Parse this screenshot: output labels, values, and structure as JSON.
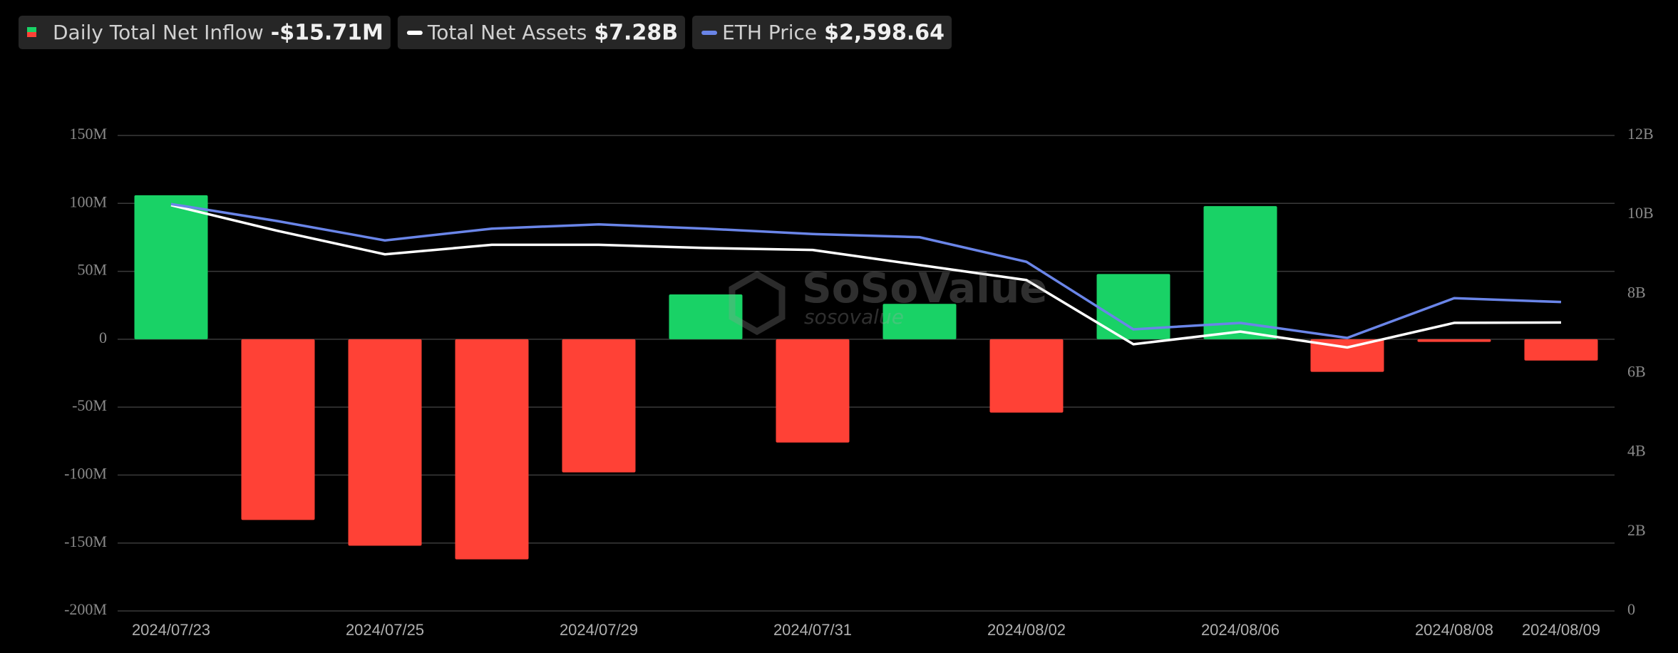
{
  "chart_data": {
    "type": "bar",
    "categories": [
      "2024/07/23",
      null,
      "2024/07/25",
      null,
      "2024/07/29",
      null,
      "2024/07/31",
      null,
      "2024/08/02",
      null,
      "2024/08/06",
      null,
      "2024/08/08",
      "2024/08/09"
    ],
    "series": [
      {
        "name": "Daily Total Net Inflow",
        "latest_label": "-$15.71M",
        "positive_color": "#19d266",
        "negative_color": "#ff4136",
        "values": [
          106,
          -133,
          -152,
          -162,
          -98,
          33,
          -76,
          26,
          -54,
          48,
          98,
          -24,
          -2,
          -15.71
        ]
      },
      {
        "name": "Total Net Assets",
        "latest_label": "$7.28B",
        "color": "#ffffff",
        "axis": "y2",
        "values": [
          10.24,
          9.59,
          9.0,
          9.24,
          9.24,
          9.16,
          9.11,
          8.73,
          8.35,
          6.73,
          7.05,
          6.65,
          7.27,
          7.28
        ]
      },
      {
        "name": "ETH Price",
        "latest_label": "$2,598.64",
        "color": "#6a85e8",
        "axis": "y3",
        "values": [
          3423,
          3279,
          3117,
          3216,
          3252,
          3216,
          3171,
          3144,
          2937,
          2369,
          2423,
          2297,
          2631,
          2598.64
        ]
      }
    ],
    "ylim": [
      -200,
      150
    ],
    "yticks": [
      {
        "value": 150,
        "label": "150M"
      },
      {
        "value": 100,
        "label": "100M"
      },
      {
        "value": 50,
        "label": "50M"
      },
      0,
      {
        "value": -50,
        "label": "-50M"
      },
      {
        "value": -100,
        "label": "-100M"
      },
      {
        "value": -150,
        "label": "-150M"
      },
      {
        "value": -200,
        "label": "-200M"
      }
    ],
    "y2lim": [
      0,
      12
    ],
    "y2ticks": [
      0,
      {
        "value": 2,
        "label": "2B"
      },
      {
        "value": 4,
        "label": "4B"
      },
      {
        "value": 6,
        "label": "6B"
      },
      {
        "value": 8,
        "label": "8B"
      },
      {
        "value": 10,
        "label": "10B"
      },
      {
        "value": 12,
        "label": "12B"
      }
    ],
    "y3lim": [
      0,
      4000
    ],
    "grid": true,
    "watermark": "SoSoValue",
    "watermark_sub": "sosovalue"
  }
}
